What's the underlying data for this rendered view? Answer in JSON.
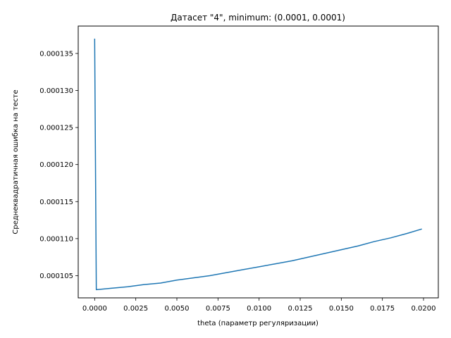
{
  "chart_data": {
    "type": "line",
    "title": "Датасет \"4\", minimum: (0.0001, 0.0001)",
    "xlabel": "theta (параметр регуляризации)",
    "ylabel": "Среднеквадратичная ошибка на тесте",
    "xlim": [
      -0.001,
      0.0209
    ],
    "ylim": [
      0.000102,
      0.0001387
    ],
    "xticks": [
      0.0,
      0.0025,
      0.005,
      0.0075,
      0.01,
      0.0125,
      0.015,
      0.0175,
      0.02
    ],
    "xtick_labels": [
      "0.0000",
      "0.0025",
      "0.0050",
      "0.0075",
      "0.0100",
      "0.0125",
      "0.0150",
      "0.0175",
      "0.0200"
    ],
    "yticks": [
      0.000105,
      0.00011,
      0.000115,
      0.00012,
      0.000125,
      0.00013,
      0.000135
    ],
    "ytick_labels": [
      "0.000105",
      "0.000110",
      "0.000115",
      "0.000120",
      "0.000125",
      "0.000130",
      "0.000135"
    ],
    "grid": false,
    "series": [
      {
        "color": "#1f77b4",
        "x": [
          0.0,
          0.0001,
          0.001,
          0.002,
          0.003,
          0.004,
          0.005,
          0.006,
          0.007,
          0.008,
          0.009,
          0.01,
          0.011,
          0.012,
          0.013,
          0.014,
          0.015,
          0.016,
          0.017,
          0.018,
          0.019,
          0.0199
        ],
        "y": [
          0.000137,
          0.0001031,
          0.0001033,
          0.0001035,
          0.0001038,
          0.000104,
          0.0001044,
          0.0001047,
          0.000105,
          0.0001054,
          0.0001058,
          0.0001062,
          0.0001066,
          0.000107,
          0.0001075,
          0.000108,
          0.0001085,
          0.000109,
          0.0001096,
          0.0001101,
          0.0001107,
          0.0001113
        ]
      }
    ]
  }
}
